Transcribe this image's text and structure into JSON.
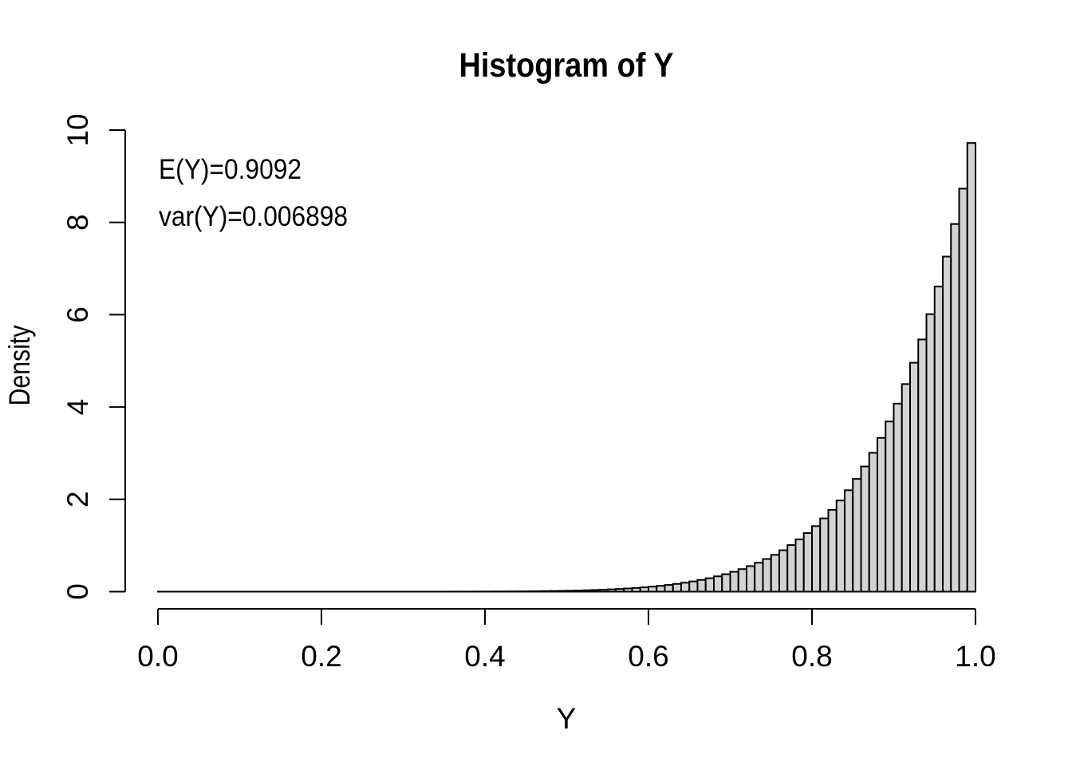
{
  "title": "Histogram of Y",
  "annotations": {
    "mean": "E(Y)=0.9092",
    "variance": "var(Y)=0.006898"
  },
  "x_axis": {
    "label": "Y",
    "ticks": [
      "0.0",
      "0.2",
      "0.4",
      "0.6",
      "0.8",
      "1.0"
    ],
    "tick_values": [
      0.0,
      0.2,
      0.4,
      0.6,
      0.8,
      1.0
    ],
    "range": [
      0.0,
      1.0
    ]
  },
  "y_axis": {
    "label": "Density",
    "ticks": [
      "0",
      "2",
      "4",
      "6",
      "8",
      "10"
    ],
    "tick_values": [
      0,
      2,
      4,
      6,
      8,
      10
    ],
    "range": [
      0,
      10
    ]
  },
  "colors": {
    "background": "#ffffff",
    "bar_fill": "#d3d3d3",
    "bar_stroke": "#000000",
    "axis": "#000000",
    "text": "#000000"
  },
  "chart_data": {
    "type": "bar",
    "subtype": "histogram",
    "title": "Histogram of Y",
    "xlabel": "Y",
    "ylabel": "Density",
    "xlim": [
      0.0,
      1.0
    ],
    "ylim": [
      0,
      10
    ],
    "bin_start": 0.0,
    "bin_width": 0.01,
    "densities": [
      0,
      0,
      0,
      0,
      0,
      0,
      0,
      0,
      0,
      0,
      0,
      0,
      0,
      0,
      0,
      0,
      0,
      0,
      0,
      0,
      0,
      0,
      0,
      0,
      0,
      0,
      0,
      0,
      0,
      0,
      0,
      0,
      0,
      0,
      0,
      0.0009,
      0.0012,
      0.0015,
      0.0019,
      0.0023,
      0.0029,
      0.0037,
      0.0045,
      0.0056,
      0.0069,
      0.0084,
      0.0102,
      0.0123,
      0.0149,
      0.0179,
      0.0214,
      0.0255,
      0.0303,
      0.0359,
      0.0425,
      0.05,
      0.0587,
      0.0688,
      0.0803,
      0.0935,
      0.1087,
      0.126,
      0.1456,
      0.168,
      0.1934,
      0.2221,
      0.2545,
      0.2911,
      0.3323,
      0.3786,
      0.4305,
      0.4887,
      0.5537,
      0.6264,
      0.7074,
      0.7975,
      0.8978,
      1.0091,
      1.1325,
      1.2691,
      1.4202,
      1.5871,
      1.7712,
      1.9741,
      2.1973,
      2.4427,
      2.7122,
      3.0078,
      3.3316,
      3.6861,
      4.0738,
      4.4972,
      4.9594,
      5.4633,
      6.0122,
      6.6096,
      7.2591,
      7.9649,
      8.7309,
      9.72
    ]
  }
}
